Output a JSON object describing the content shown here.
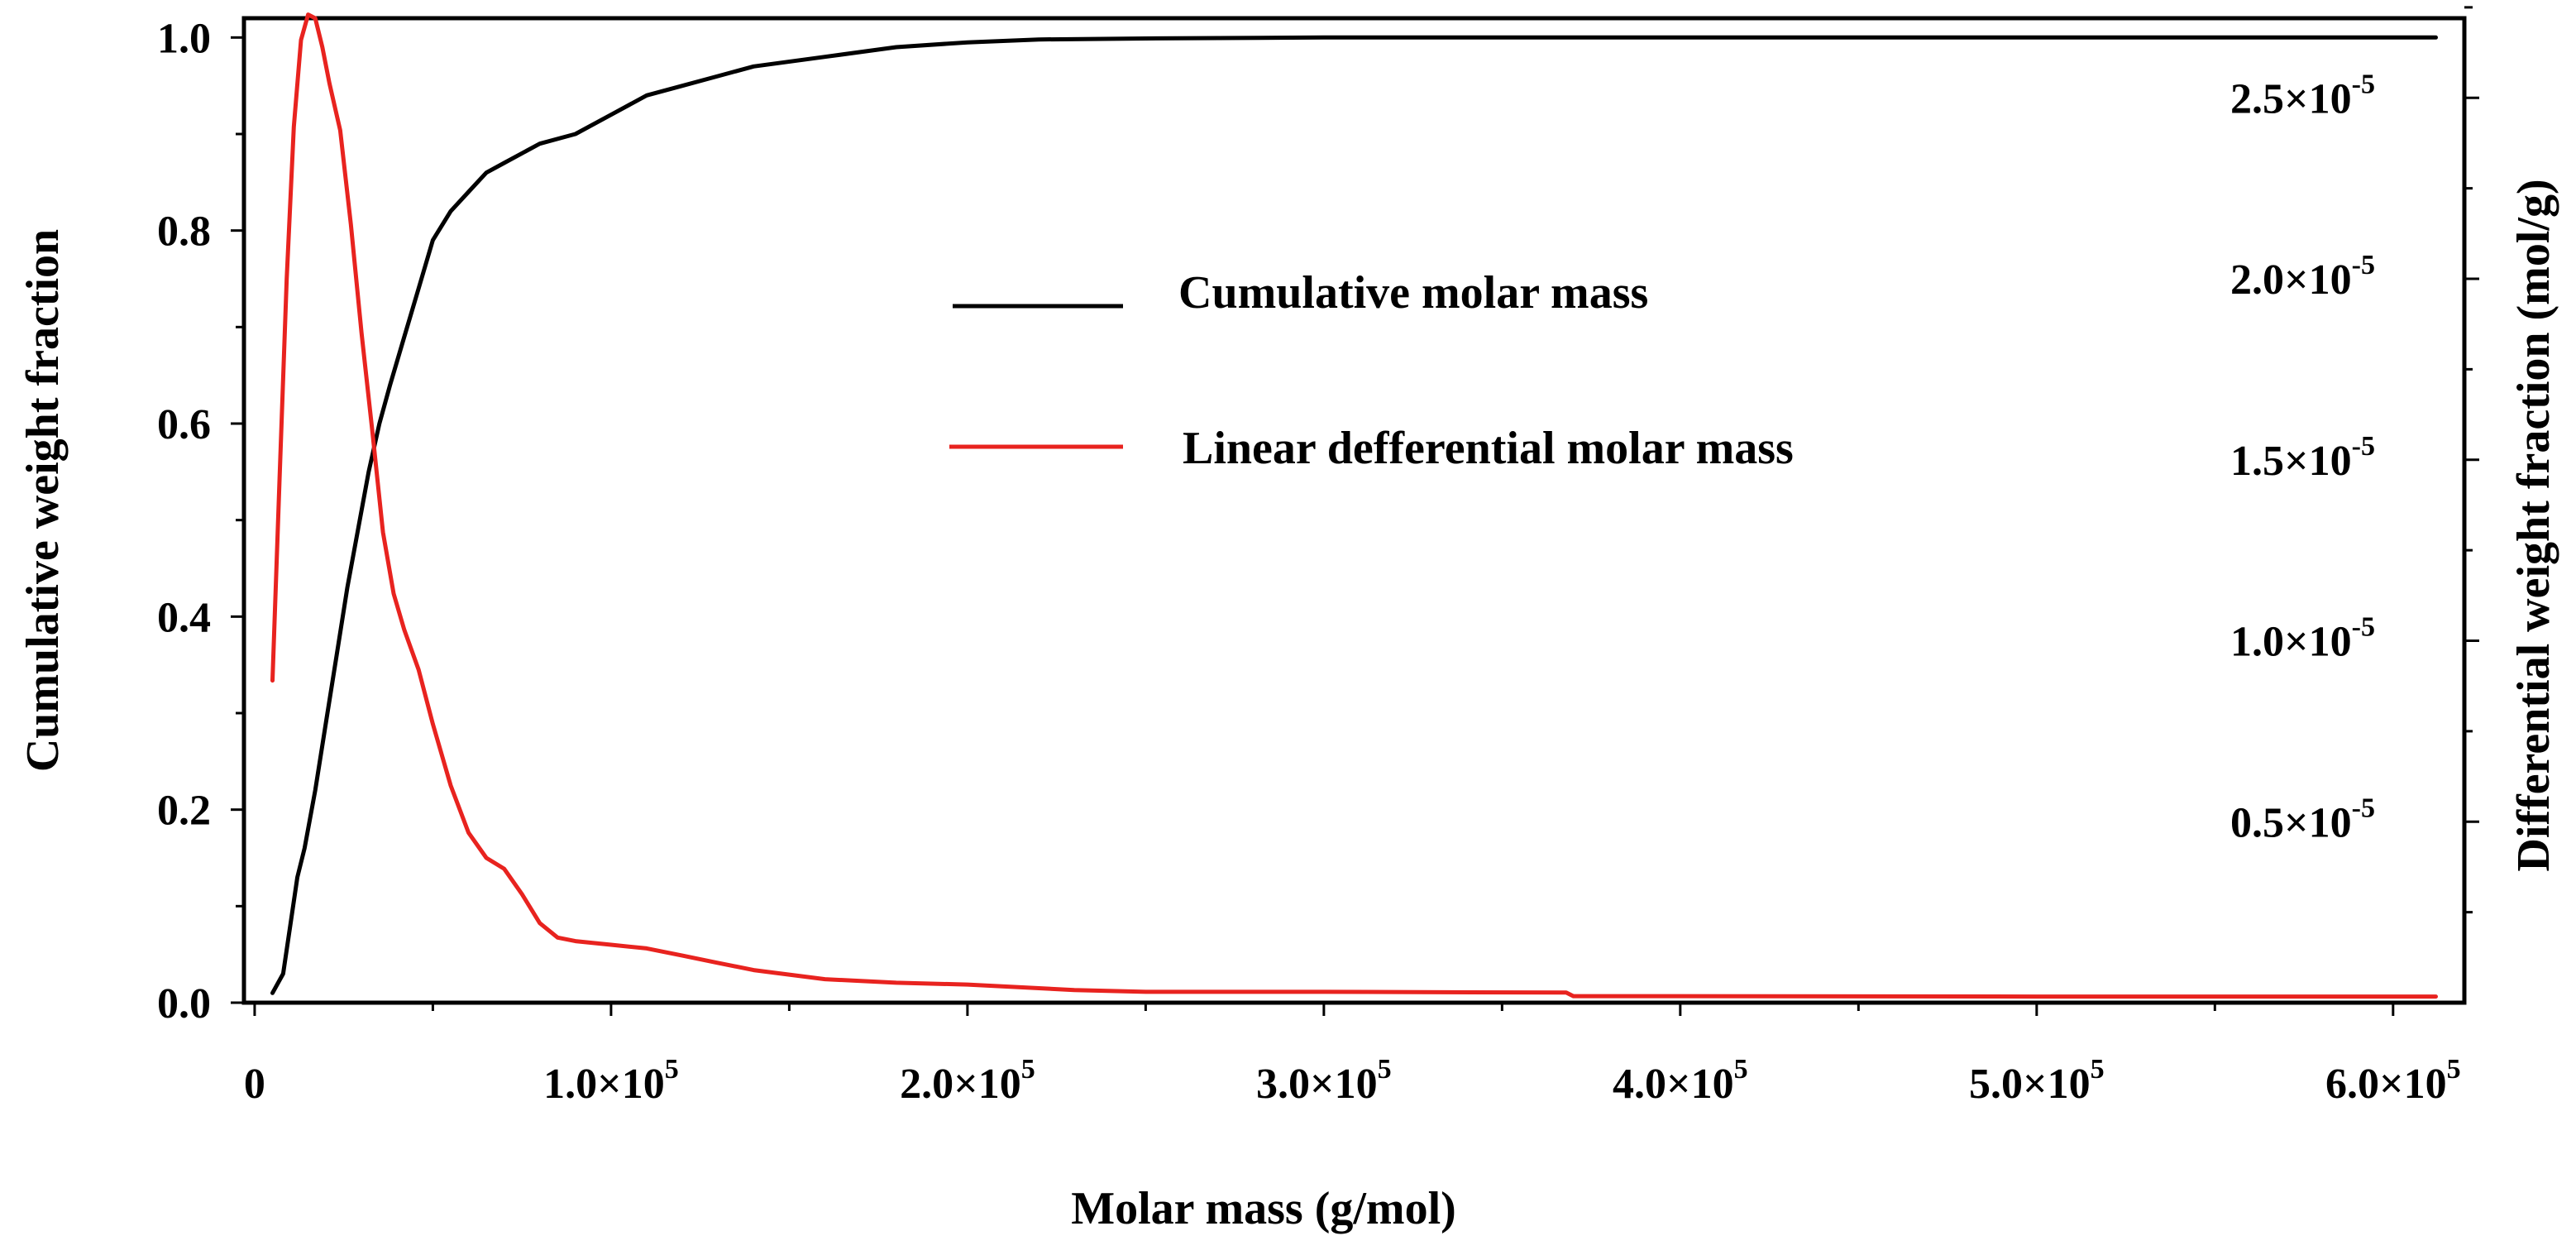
{
  "chart_data": {
    "type": "line",
    "title": "",
    "xlabel": "Molar mass (g/mol)",
    "ylabel_left": "Cumulative weight fraction",
    "ylabel_right": "Differential weight fraction (mol/g)",
    "xlim": [
      -3000,
      620000
    ],
    "ylim_left": [
      0.0,
      1.02
    ],
    "ylim_right": [
      0.0,
      2.72e-05
    ],
    "grid": false,
    "legend_position": "center",
    "x_ticks": [
      {
        "value": 0,
        "label": "0",
        "exp": ""
      },
      {
        "value": 100000,
        "label": "1.0×10",
        "exp": "5"
      },
      {
        "value": 200000,
        "label": "2.0×10",
        "exp": "5"
      },
      {
        "value": 300000,
        "label": "3.0×10",
        "exp": "5"
      },
      {
        "value": 400000,
        "label": "4.0×10",
        "exp": "5"
      },
      {
        "value": 500000,
        "label": "5.0×10",
        "exp": "5"
      },
      {
        "value": 600000,
        "label": "6.0×10",
        "exp": "5"
      }
    ],
    "y_left_ticks": [
      {
        "value": 0.0,
        "label": "0.0"
      },
      {
        "value": 0.2,
        "label": "0.2"
      },
      {
        "value": 0.4,
        "label": "0.4"
      },
      {
        "value": 0.6,
        "label": "0.6"
      },
      {
        "value": 0.8,
        "label": "0.8"
      },
      {
        "value": 1.0,
        "label": "1.0"
      }
    ],
    "y_right_ticks": [
      {
        "value": 5e-06,
        "label": "0.5×10",
        "exp": "-5"
      },
      {
        "value": 1e-05,
        "label": "1.0×10",
        "exp": "-5"
      },
      {
        "value": 1.5e-05,
        "label": "1.5×10",
        "exp": "-5"
      },
      {
        "value": 2e-05,
        "label": "2.0×10",
        "exp": "-5"
      },
      {
        "value": 2.5e-05,
        "label": "2.5×10",
        "exp": "-5"
      }
    ],
    "series": [
      {
        "name": "Cumulative molar mass",
        "axis": "left",
        "color": "#000000",
        "x": [
          5000,
          8000,
          10000,
          12000,
          14000,
          17000,
          20000,
          23000,
          26000,
          29000,
          32000,
          35000,
          38000,
          42000,
          46000,
          50000,
          55000,
          60000,
          65000,
          70000,
          75000,
          80000,
          90000,
          100000,
          110000,
          120000,
          130000,
          140000,
          160000,
          180000,
          200000,
          220000,
          250000,
          300000,
          400000,
          500000,
          600000,
          612000
        ],
        "y": [
          0.01,
          0.03,
          0.08,
          0.13,
          0.16,
          0.22,
          0.29,
          0.36,
          0.43,
          0.49,
          0.55,
          0.6,
          0.64,
          0.69,
          0.74,
          0.79,
          0.82,
          0.84,
          0.86,
          0.87,
          0.88,
          0.89,
          0.9,
          0.92,
          0.94,
          0.95,
          0.96,
          0.97,
          0.98,
          0.99,
          0.995,
          0.998,
          0.999,
          1.0,
          1.0,
          1.0,
          1.0,
          1.0
        ]
      },
      {
        "name": "Linear defferential molar mass",
        "axis": "right",
        "color": "#e8231f",
        "x": [
          5000,
          7000,
          9000,
          11000,
          13000,
          15000,
          17000,
          19000,
          21000,
          24000,
          27000,
          30000,
          33000,
          36000,
          39000,
          42000,
          46000,
          50000,
          55000,
          60000,
          65000,
          70000,
          75000,
          80000,
          85000,
          90000,
          100000,
          110000,
          120000,
          130000,
          140000,
          160000,
          180000,
          200000,
          230000,
          250000,
          300000,
          368000,
          370000,
          400000,
          500000,
          600000,
          612000
        ],
        "y": [
          8.9e-06,
          1.45e-05,
          2e-05,
          2.42e-05,
          2.66e-05,
          2.73e-05,
          2.72e-05,
          2.64e-05,
          2.54e-05,
          2.41e-05,
          2.15e-05,
          1.85e-05,
          1.58e-05,
          1.3e-05,
          1.13e-05,
          1.03e-05,
          9.2e-06,
          7.7e-06,
          6e-06,
          4.7e-06,
          4e-06,
          3.7e-06,
          3e-06,
          2.2e-06,
          1.8e-06,
          1.7e-06,
          1.6e-06,
          1.5e-06,
          1.3e-06,
          1.1e-06,
          9e-07,
          6.5e-07,
          5.5e-07,
          5e-07,
          3.5e-07,
          3e-07,
          3e-07,
          2.8e-07,
          1.8e-07,
          1.8e-07,
          1.7e-07,
          1.7e-07,
          1.7e-07
        ]
      }
    ]
  }
}
